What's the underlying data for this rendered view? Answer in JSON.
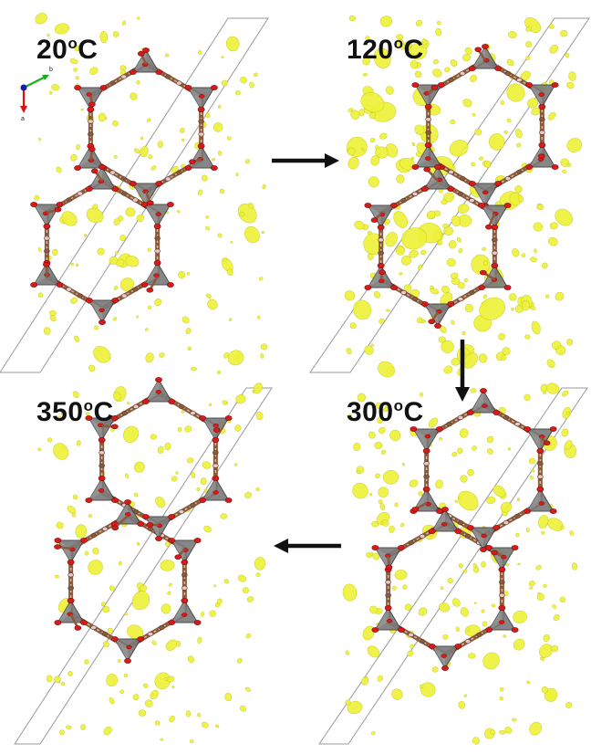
{
  "panels": [
    {
      "id": "p20",
      "temp": "20",
      "unit": "C",
      "deg": "o"
    },
    {
      "id": "p120",
      "temp": "120",
      "unit": "C",
      "deg": "o"
    },
    {
      "id": "p300",
      "temp": "300",
      "unit": "C",
      "deg": "o"
    },
    {
      "id": "p350",
      "temp": "350",
      "unit": "C",
      "deg": "o"
    }
  ],
  "axes": {
    "b_label": "b",
    "a_label": "a"
  },
  "colors": {
    "density": "#eef23a",
    "density_edge": "#c8c81e",
    "tetra": "#7a7a7a",
    "tetra_edge": "#3a3a3a",
    "oxygen": "#d81a1a",
    "carbon": "#8a5a3c",
    "cell": "#9a9a9a",
    "axis_a": "#e01010",
    "axis_b": "#18b018",
    "origin": "#1a1aa8"
  }
}
